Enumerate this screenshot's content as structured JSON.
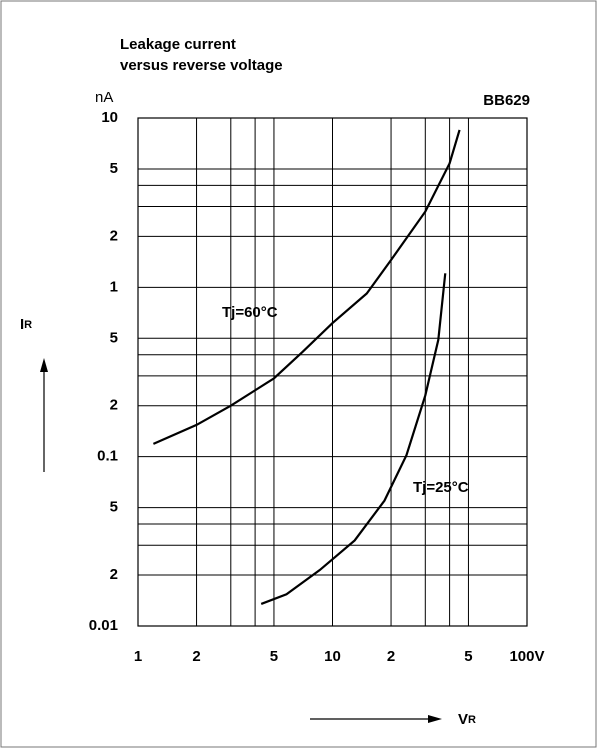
{
  "chart_data": {
    "type": "line",
    "title_lines": [
      "Leakage current",
      "versus reverse voltage"
    ],
    "y_unit": "nA",
    "part_label": "BB629",
    "y_label": "I",
    "y_label_sub": "R",
    "x_label": "V",
    "x_label_sub": "R",
    "log_x": true,
    "log_y": true,
    "grid": true,
    "color": "#000000",
    "xlim": [
      1,
      100
    ],
    "xticks": [
      1,
      2,
      5,
      10,
      {
        "value": 20,
        "label": "2"
      },
      {
        "value": 50,
        "label": "5"
      },
      {
        "value": 100,
        "label": "100V"
      }
    ],
    "x_minor_ticks": [
      3,
      4,
      30,
      40
    ],
    "ylim": [
      0.01,
      10
    ],
    "yticks": [
      10,
      5,
      2,
      1,
      {
        "value": 0.5,
        "label": "5"
      },
      {
        "value": 0.2,
        "label": "2"
      },
      0.1,
      {
        "value": 0.05,
        "label": "5"
      },
      {
        "value": 0.02,
        "label": "2"
      },
      0.01
    ],
    "y_minor_ticks": [
      4,
      3,
      0.4,
      0.3,
      0.04,
      0.03
    ],
    "series": [
      {
        "name": "Tj=60°C",
        "x": [
          1.2,
          2,
          3,
          5,
          7,
          10,
          15,
          20,
          30,
          40,
          45
        ],
        "values": [
          0.119,
          0.154,
          0.2,
          0.29,
          0.415,
          0.615,
          0.92,
          1.45,
          2.8,
          5.4,
          8.5
        ]
      },
      {
        "name": "Tj=25°C",
        "x": [
          4.3,
          5.8,
          8.6,
          13,
          18.5,
          24,
          30,
          35,
          38
        ],
        "values": [
          0.0135,
          0.0154,
          0.0214,
          0.032,
          0.055,
          0.102,
          0.23,
          0.49,
          1.21
        ]
      }
    ]
  }
}
